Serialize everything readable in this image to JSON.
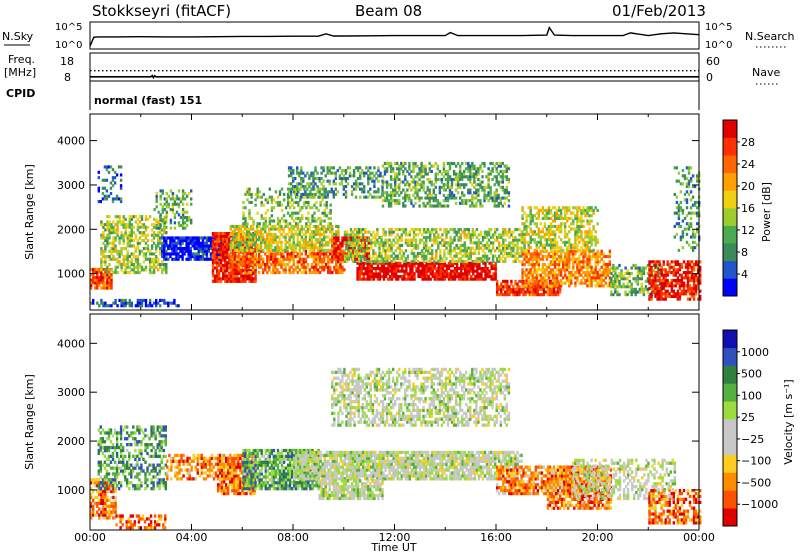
{
  "header": {
    "station": "Stokkseyri (fitACF)",
    "beam": "Beam 08",
    "date": "01/Feb/2013"
  },
  "colors": {
    "power_scale": [
      "#0000ff",
      "#2255cc",
      "#3c8a5a",
      "#4daa50",
      "#9ccc30",
      "#f0d010",
      "#ffa000",
      "#ff6600",
      "#ff3000",
      "#e00000"
    ],
    "velocity_scale": [
      "#1010b0",
      "#3050c0",
      "#308040",
      "#55b040",
      "#9cdc40",
      "#c8c8c8",
      "#c8c8c8",
      "#ffcc20",
      "#ff8c00",
      "#ff5000",
      "#e00000"
    ]
  },
  "chart_data": [
    {
      "type": "line",
      "panel": "noise",
      "left_label": "N.Sky",
      "right_label": "N.Search",
      "yticks_left": [
        "10^5",
        "10^0"
      ],
      "yticks_right": [
        "10^5",
        "10^0"
      ],
      "xlim": [
        0,
        24
      ],
      "series": [
        {
          "name": "N.Sky",
          "x": [
            0,
            0.15,
            0.3,
            1,
            2,
            3,
            4,
            5,
            6,
            7,
            8,
            9,
            9.3,
            9.6,
            10,
            11,
            12,
            13,
            14,
            14.2,
            14.5,
            15,
            16,
            17,
            18,
            18.1,
            18.3,
            19,
            20,
            21,
            21.3,
            22,
            22.5,
            23,
            23.5,
            24
          ],
          "y": [
            0.2,
            2.2,
            2.3,
            2.3,
            2.35,
            2.3,
            2.3,
            2.35,
            2.4,
            2.4,
            2.45,
            2.45,
            3.0,
            2.5,
            2.5,
            2.55,
            2.6,
            2.6,
            2.6,
            3.3,
            2.6,
            2.6,
            2.6,
            2.6,
            2.7,
            4.4,
            2.7,
            2.6,
            2.6,
            2.6,
            3.2,
            2.6,
            3.0,
            3.2,
            3.0,
            2.8
          ]
        }
      ]
    },
    {
      "type": "line",
      "panel": "frequency",
      "left_label": "Freq.",
      "left_unit": "[MHz]",
      "right_label": "Nave",
      "yticks_left": [
        "18",
        "8"
      ],
      "yticks_right": [
        "60",
        "0"
      ],
      "xlim": [
        0,
        24
      ],
      "series": [
        {
          "name": "Freq.",
          "x": [
            0,
            2.4,
            2.45,
            2.5,
            2.55,
            2.6,
            24
          ],
          "y": [
            10,
            10,
            10.8,
            9.5,
            10.6,
            10,
            10
          ]
        },
        {
          "name": "Nave",
          "x": [
            0,
            24
          ],
          "y": [
            35,
            35
          ]
        }
      ]
    },
    {
      "type": "table",
      "panel": "cpid",
      "label": "CPID",
      "mode_text": "normal (fast) 151"
    },
    {
      "type": "heatmap",
      "panel": "power",
      "ylabel": "Slant Range [km]",
      "xlim": [
        0,
        24
      ],
      "ylim": [
        180,
        4600
      ],
      "yticks": [
        "1000",
        "2000",
        "3000",
        "4000"
      ],
      "colorbar_label": "Power [dB]",
      "colorbar_ticks": [
        "4",
        "8",
        "12",
        "16",
        "20",
        "24",
        "28"
      ],
      "bands": [
        {
          "t0": 0.0,
          "t1": 0.8,
          "r0": 650,
          "r1": 1100,
          "v": 0.8,
          "d": 0.8,
          "s": 1
        },
        {
          "t0": 0.0,
          "t1": 3.5,
          "r0": 250,
          "r1": 420,
          "v": 0.15,
          "d": 0.5,
          "s": 2
        },
        {
          "t0": 0.4,
          "t1": 3.0,
          "r0": 1000,
          "r1": 2300,
          "v": 0.45,
          "d": 0.55,
          "s": 3
        },
        {
          "t0": 0.3,
          "t1": 1.2,
          "r0": 2600,
          "r1": 3500,
          "v": 0.2,
          "d": 0.3,
          "s": 4
        },
        {
          "t0": 2.5,
          "t1": 4.0,
          "r0": 2000,
          "r1": 2900,
          "v": 0.35,
          "d": 0.45,
          "s": 5
        },
        {
          "t0": 2.8,
          "t1": 5.2,
          "r0": 1300,
          "r1": 1800,
          "v": 0.05,
          "d": 0.85,
          "s": 6
        },
        {
          "t0": 4.8,
          "t1": 6.5,
          "r0": 800,
          "r1": 1900,
          "v": 0.88,
          "d": 0.85,
          "s": 7
        },
        {
          "t0": 5.5,
          "t1": 10.0,
          "r0": 1000,
          "r1": 1500,
          "v": 0.75,
          "d": 0.7,
          "s": 8
        },
        {
          "t0": 5.5,
          "t1": 9.8,
          "r0": 1500,
          "r1": 2100,
          "v": 0.5,
          "d": 0.75,
          "s": 9
        },
        {
          "t0": 6.0,
          "t1": 9.5,
          "r0": 2100,
          "r1": 2900,
          "v": 0.4,
          "d": 0.4,
          "s": 10
        },
        {
          "t0": 7.8,
          "t1": 11.5,
          "r0": 2700,
          "r1": 3400,
          "v": 0.3,
          "d": 0.45,
          "s": 11
        },
        {
          "t0": 9.5,
          "t1": 11.0,
          "r0": 1300,
          "r1": 1800,
          "v": 0.92,
          "d": 0.8,
          "s": 12
        },
        {
          "t0": 10.5,
          "t1": 16.0,
          "r0": 850,
          "r1": 1250,
          "v": 0.97,
          "d": 0.85,
          "s": 13
        },
        {
          "t0": 10.0,
          "t1": 17.0,
          "r0": 1250,
          "r1": 2000,
          "v": 0.45,
          "d": 0.6,
          "s": 14
        },
        {
          "t0": 11.5,
          "t1": 16.5,
          "r0": 2500,
          "r1": 3500,
          "v": 0.35,
          "d": 0.5,
          "s": 15
        },
        {
          "t0": 16.0,
          "t1": 18.5,
          "r0": 500,
          "r1": 850,
          "v": 0.85,
          "d": 0.8,
          "s": 16
        },
        {
          "t0": 17.0,
          "t1": 20.5,
          "r0": 700,
          "r1": 1500,
          "v": 0.7,
          "d": 0.7,
          "s": 17
        },
        {
          "t0": 17.0,
          "t1": 20.0,
          "r0": 1500,
          "r1": 2500,
          "v": 0.5,
          "d": 0.6,
          "s": 18
        },
        {
          "t0": 20.5,
          "t1": 22.5,
          "r0": 500,
          "r1": 1200,
          "v": 0.35,
          "d": 0.5,
          "s": 19
        },
        {
          "t0": 22.0,
          "t1": 24.0,
          "r0": 400,
          "r1": 1300,
          "v": 0.92,
          "d": 0.7,
          "s": 20
        },
        {
          "t0": 23.0,
          "t1": 24.0,
          "r0": 1500,
          "r1": 3400,
          "v": 0.3,
          "d": 0.3,
          "s": 21
        }
      ]
    },
    {
      "type": "heatmap",
      "panel": "velocity",
      "ylabel": "Slant Range [km]",
      "xlabel": "Time UT",
      "xlim": [
        0,
        24
      ],
      "ylim": [
        180,
        4600
      ],
      "xticks": [
        "00:00",
        "04:00",
        "08:00",
        "12:00",
        "16:00",
        "20:00",
        "00:00"
      ],
      "yticks": [
        "1000",
        "2000",
        "3000",
        "4000"
      ],
      "colorbar_label": "Velocity [m s⁻¹]",
      "colorbar_ticks": [
        "1000",
        "500",
        "100",
        "25",
        "−25",
        "−100",
        "−500",
        "−1000"
      ],
      "bands": [
        {
          "t0": 0.0,
          "t1": 1.0,
          "r0": 400,
          "r1": 1200,
          "v": 0.78,
          "d": 0.75,
          "s": 31
        },
        {
          "t0": 0.3,
          "t1": 3.0,
          "r0": 1000,
          "r1": 2300,
          "v": 0.3,
          "d": 0.5,
          "s": 32
        },
        {
          "t0": 1.0,
          "t1": 3.0,
          "r0": 200,
          "r1": 500,
          "v": 0.85,
          "d": 0.45,
          "s": 33
        },
        {
          "t0": 3.0,
          "t1": 5.0,
          "r0": 1200,
          "r1": 1700,
          "v": 0.78,
          "d": 0.6,
          "s": 34
        },
        {
          "t0": 5.0,
          "t1": 6.5,
          "r0": 900,
          "r1": 1700,
          "v": 0.8,
          "d": 0.8,
          "s": 35
        },
        {
          "t0": 6.0,
          "t1": 9.0,
          "r0": 1000,
          "r1": 1800,
          "v": 0.3,
          "d": 0.8,
          "s": 36
        },
        {
          "t0": 8.0,
          "t1": 17.0,
          "r0": 1200,
          "r1": 1800,
          "v": 0.5,
          "d": 0.85,
          "s": 37
        },
        {
          "t0": 9.5,
          "t1": 16.5,
          "r0": 2300,
          "r1": 3500,
          "v": 0.5,
          "d": 0.55,
          "s": 38
        },
        {
          "t0": 9.0,
          "t1": 11.5,
          "r0": 800,
          "r1": 1200,
          "v": 0.5,
          "d": 0.8,
          "s": 39
        },
        {
          "t0": 16.0,
          "t1": 19.0,
          "r0": 900,
          "r1": 1500,
          "v": 0.78,
          "d": 0.75,
          "s": 40
        },
        {
          "t0": 18.0,
          "t1": 20.5,
          "r0": 600,
          "r1": 1500,
          "v": 0.78,
          "d": 0.75,
          "s": 41
        },
        {
          "t0": 19.0,
          "t1": 23.0,
          "r0": 800,
          "r1": 1600,
          "v": 0.5,
          "d": 0.4,
          "s": 42
        },
        {
          "t0": 22.0,
          "t1": 24.0,
          "r0": 300,
          "r1": 1000,
          "v": 0.82,
          "d": 0.6,
          "s": 43
        }
      ]
    }
  ]
}
